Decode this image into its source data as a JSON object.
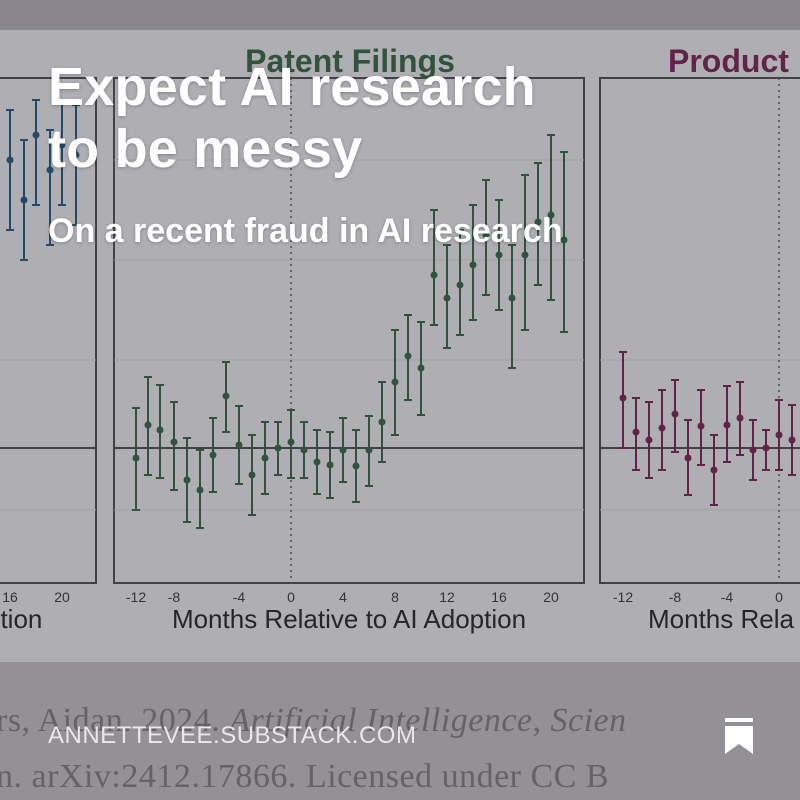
{
  "post": {
    "title_line1": "Expect AI research",
    "title_line2": "to be messy",
    "subtitle": "On a recent fraud in AI research",
    "publication_domain": "ANNETTEVEE.SUBSTACK.COM",
    "bookmark_icon": "bookmark-icon"
  },
  "background_figure": {
    "panel_titles": [
      "Patent Filings",
      "Product"
    ],
    "left_tick_labels": [
      "16",
      "20"
    ],
    "middle_tick_labels": [
      "-12",
      "-8",
      "-4",
      "0",
      "4",
      "8",
      "12",
      "16",
      "20"
    ],
    "right_tick_labels": [
      "-12",
      "-8",
      "-4",
      "0"
    ],
    "left_axis_fragment": "ption",
    "middle_axis_label": "Months Relative to AI Adoption",
    "right_axis_fragment": "Months Rela",
    "caption_line1_prefix": "rs, Aidan. 2024. ",
    "caption_line1_italic": "Artificial Intelligence, Scien",
    "caption_line2": "n. arXiv:2412.17866. Licensed under CC B"
  },
  "colors": {
    "overlay_text": "#ffffff",
    "left_series": "#1f4f73",
    "middle_series": "#2f5a3d",
    "right_series": "#6b1f4a",
    "patent_title": "#2f5a3d",
    "product_title": "#6b1f4a"
  }
}
